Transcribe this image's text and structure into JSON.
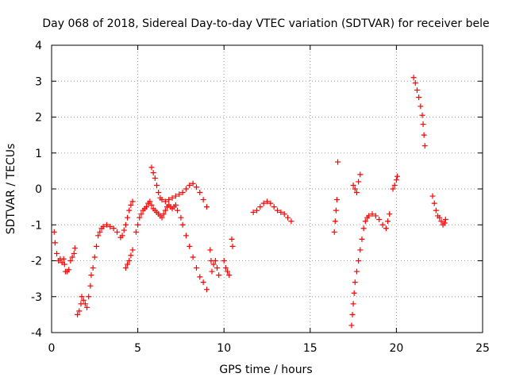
{
  "chart_data": {
    "type": "scatter",
    "title": "Day 068 of 2018, Sidereal Day-to-day VTEC variation (SDTVAR) for receiver bele",
    "xlabel": "GPS time / hours",
    "ylabel": "SDTVAR / TECUs",
    "xlim": [
      0,
      25
    ],
    "ylim": [
      -4,
      4
    ],
    "xticks": [
      0,
      5,
      10,
      15,
      20,
      25
    ],
    "yticks": [
      -4,
      -3,
      -2,
      -1,
      0,
      1,
      2,
      3,
      4
    ],
    "grid": true,
    "marker": "+",
    "color": "#ff0000",
    "series": [
      {
        "name": "segment-1",
        "points": [
          [
            0.15,
            -1.2
          ],
          [
            0.2,
            -1.5
          ],
          [
            0.3,
            -1.8
          ],
          [
            0.4,
            -2.0
          ],
          [
            0.5,
            -1.95
          ],
          [
            0.6,
            -2.05
          ],
          [
            0.7,
            -1.95
          ],
          [
            0.75,
            -2.1
          ],
          [
            0.8,
            -2.3
          ],
          [
            0.9,
            -2.3
          ],
          [
            1.0,
            -2.25
          ],
          [
            1.1,
            -2.0
          ],
          [
            1.2,
            -1.9
          ],
          [
            1.3,
            -1.8
          ],
          [
            1.35,
            -1.65
          ]
        ]
      },
      {
        "name": "segment-2",
        "points": [
          [
            1.5,
            -3.5
          ],
          [
            1.6,
            -3.4
          ],
          [
            1.7,
            -3.2
          ],
          [
            1.75,
            -3.0
          ],
          [
            1.85,
            -3.1
          ],
          [
            1.95,
            -3.2
          ],
          [
            2.05,
            -3.3
          ],
          [
            2.15,
            -3.0
          ],
          [
            2.25,
            -2.7
          ],
          [
            2.3,
            -2.4
          ],
          [
            2.4,
            -2.2
          ],
          [
            2.5,
            -1.9
          ],
          [
            2.6,
            -1.6
          ],
          [
            2.7,
            -1.3
          ],
          [
            2.8,
            -1.2
          ],
          [
            2.9,
            -1.1
          ],
          [
            3.0,
            -1.05
          ],
          [
            3.2,
            -1.0
          ],
          [
            3.4,
            -1.05
          ],
          [
            3.6,
            -1.1
          ],
          [
            3.8,
            -1.2
          ],
          [
            4.0,
            -1.35
          ],
          [
            4.1,
            -1.3
          ],
          [
            4.2,
            -1.15
          ],
          [
            4.3,
            -1.0
          ],
          [
            4.4,
            -0.8
          ],
          [
            4.5,
            -0.6
          ],
          [
            4.6,
            -0.45
          ],
          [
            4.7,
            -0.35
          ]
        ]
      },
      {
        "name": "segment-3",
        "points": [
          [
            4.3,
            -2.2
          ],
          [
            4.4,
            -2.1
          ],
          [
            4.5,
            -2.0
          ],
          [
            4.6,
            -1.85
          ],
          [
            4.7,
            -1.7
          ]
        ]
      },
      {
        "name": "segment-4",
        "points": [
          [
            4.9,
            -1.2
          ],
          [
            5.0,
            -1.0
          ],
          [
            5.1,
            -0.8
          ],
          [
            5.2,
            -0.7
          ],
          [
            5.3,
            -0.6
          ],
          [
            5.4,
            -0.55
          ],
          [
            5.5,
            -0.5
          ],
          [
            5.6,
            -0.4
          ],
          [
            5.7,
            -0.35
          ],
          [
            5.8,
            -0.45
          ],
          [
            5.9,
            -0.55
          ],
          [
            6.0,
            -0.6
          ],
          [
            6.1,
            -0.65
          ],
          [
            6.2,
            -0.7
          ],
          [
            6.3,
            -0.75
          ],
          [
            6.4,
            -0.8
          ],
          [
            6.5,
            -0.7
          ],
          [
            6.6,
            -0.6
          ],
          [
            6.7,
            -0.5
          ],
          [
            6.8,
            -0.45
          ],
          [
            6.9,
            -0.5
          ],
          [
            7.0,
            -0.55
          ],
          [
            7.1,
            -0.5
          ],
          [
            7.2,
            -0.45
          ],
          [
            7.3,
            -0.6
          ],
          [
            7.5,
            -0.8
          ],
          [
            7.6,
            -1.0
          ],
          [
            7.8,
            -1.3
          ],
          [
            8.0,
            -1.6
          ],
          [
            8.2,
            -1.9
          ],
          [
            8.4,
            -2.2
          ],
          [
            8.6,
            -2.45
          ],
          [
            8.8,
            -2.6
          ],
          [
            9.0,
            -2.8
          ]
        ]
      },
      {
        "name": "segment-5",
        "points": [
          [
            5.8,
            0.6
          ],
          [
            5.9,
            0.45
          ],
          [
            6.0,
            0.3
          ],
          [
            6.1,
            0.1
          ],
          [
            6.2,
            -0.1
          ],
          [
            6.3,
            -0.25
          ],
          [
            6.4,
            -0.3
          ],
          [
            6.6,
            -0.35
          ],
          [
            6.8,
            -0.3
          ],
          [
            7.0,
            -0.25
          ],
          [
            7.2,
            -0.2
          ],
          [
            7.4,
            -0.15
          ],
          [
            7.6,
            -0.1
          ],
          [
            7.8,
            0.0
          ],
          [
            8.0,
            0.1
          ],
          [
            8.2,
            0.15
          ],
          [
            8.4,
            0.05
          ],
          [
            8.6,
            -0.1
          ],
          [
            8.8,
            -0.3
          ],
          [
            9.0,
            -0.5
          ]
        ]
      },
      {
        "name": "segment-6",
        "points": [
          [
            9.2,
            -1.7
          ],
          [
            9.25,
            -2.0
          ],
          [
            9.3,
            -2.3
          ],
          [
            9.4,
            -2.1
          ],
          [
            9.5,
            -2.0
          ],
          [
            9.6,
            -2.2
          ],
          [
            9.7,
            -2.4
          ]
        ]
      },
      {
        "name": "segment-7",
        "points": [
          [
            10.0,
            -2.0
          ],
          [
            10.1,
            -2.2
          ],
          [
            10.2,
            -2.3
          ],
          [
            10.3,
            -2.4
          ]
        ]
      },
      {
        "name": "segment-8",
        "points": [
          [
            10.45,
            -1.4
          ],
          [
            10.5,
            -1.6
          ]
        ]
      },
      {
        "name": "segment-9",
        "points": [
          [
            11.7,
            -0.65
          ],
          [
            11.9,
            -0.6
          ],
          [
            12.1,
            -0.5
          ],
          [
            12.3,
            -0.4
          ],
          [
            12.5,
            -0.35
          ],
          [
            12.7,
            -0.4
          ],
          [
            12.9,
            -0.5
          ],
          [
            13.1,
            -0.6
          ],
          [
            13.3,
            -0.65
          ],
          [
            13.5,
            -0.7
          ],
          [
            13.7,
            -0.8
          ],
          [
            13.9,
            -0.9
          ]
        ]
      },
      {
        "name": "segment-10",
        "points": [
          [
            16.4,
            -1.2
          ],
          [
            16.45,
            -0.9
          ],
          [
            16.5,
            -0.6
          ],
          [
            16.55,
            -0.3
          ],
          [
            16.6,
            0.75
          ]
        ]
      },
      {
        "name": "segment-11",
        "points": [
          [
            17.4,
            -3.8
          ],
          [
            17.45,
            -3.5
          ],
          [
            17.5,
            -3.2
          ],
          [
            17.55,
            -2.9
          ],
          [
            17.6,
            -2.6
          ],
          [
            17.7,
            -2.3
          ],
          [
            17.8,
            -2.0
          ],
          [
            17.9,
            -1.7
          ],
          [
            18.0,
            -1.4
          ],
          [
            18.1,
            -1.1
          ],
          [
            18.2,
            -0.9
          ],
          [
            18.3,
            -0.8
          ],
          [
            18.4,
            -0.75
          ],
          [
            18.6,
            -0.7
          ],
          [
            18.8,
            -0.75
          ],
          [
            19.0,
            -0.85
          ],
          [
            19.2,
            -1.0
          ],
          [
            19.4,
            -1.1
          ],
          [
            19.5,
            -0.9
          ],
          [
            19.6,
            -0.7
          ]
        ]
      },
      {
        "name": "segment-12",
        "points": [
          [
            17.5,
            0.1
          ],
          [
            17.6,
            0.0
          ],
          [
            17.7,
            -0.1
          ],
          [
            17.8,
            0.2
          ],
          [
            17.9,
            0.4
          ]
        ]
      },
      {
        "name": "segment-13",
        "points": [
          [
            19.8,
            0.0
          ],
          [
            19.9,
            0.1
          ],
          [
            20.0,
            0.25
          ],
          [
            20.05,
            0.35
          ]
        ]
      },
      {
        "name": "segment-14",
        "points": [
          [
            21.0,
            3.1
          ],
          [
            21.1,
            2.95
          ],
          [
            21.2,
            2.75
          ],
          [
            21.3,
            2.55
          ],
          [
            21.4,
            2.3
          ],
          [
            21.5,
            2.05
          ],
          [
            21.55,
            1.8
          ],
          [
            21.6,
            1.5
          ],
          [
            21.65,
            1.2
          ]
        ]
      },
      {
        "name": "segment-15",
        "points": [
          [
            22.1,
            -0.2
          ],
          [
            22.2,
            -0.4
          ],
          [
            22.3,
            -0.6
          ],
          [
            22.4,
            -0.75
          ],
          [
            22.5,
            -0.8
          ],
          [
            22.6,
            -0.9
          ],
          [
            22.7,
            -1.0
          ],
          [
            22.8,
            -0.95
          ],
          [
            22.85,
            -0.85
          ]
        ]
      }
    ]
  }
}
